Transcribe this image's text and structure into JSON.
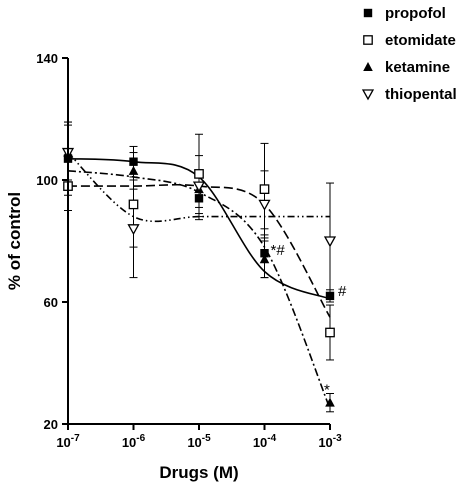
{
  "chart_data": {
    "type": "scatter",
    "title": "",
    "xlabel": "Drugs (M)",
    "ylabel": "% of control",
    "x_scale": "log",
    "xlim": [
      1e-07,
      0.001
    ],
    "ylim": [
      20,
      140
    ],
    "x_ticks": [
      {
        "value": 1e-07,
        "base": "10",
        "exp": "-7"
      },
      {
        "value": 1e-06,
        "base": "10",
        "exp": "-6"
      },
      {
        "value": 1e-05,
        "base": "10",
        "exp": "-5"
      },
      {
        "value": 0.0001,
        "base": "10",
        "exp": "-4"
      },
      {
        "value": 0.001,
        "base": "10",
        "exp": "-3"
      }
    ],
    "y_ticks": [
      "20",
      "60",
      "100",
      "140"
    ],
    "grid": false,
    "legend_position": "top-right",
    "series": [
      {
        "name": "propofol",
        "marker": "filled-square",
        "line_style": "solid",
        "color": "#000000",
        "x": [
          1e-07,
          1e-06,
          1e-05,
          0.0001,
          0.001
        ],
        "y": [
          107,
          106,
          94,
          76,
          62
        ],
        "err": [
          12,
          5,
          7,
          8,
          2
        ],
        "curve_y": [
          107,
          106,
          101,
          70,
          61
        ]
      },
      {
        "name": "etomidate",
        "marker": "open-square",
        "line_style": "long-dash",
        "color": "#000000",
        "x": [
          1e-07,
          1e-06,
          1e-05,
          0.0001,
          0.001
        ],
        "y": [
          98,
          92,
          102,
          97,
          50
        ],
        "err": [
          8,
          14,
          13,
          15,
          9
        ],
        "curve_y": [
          98,
          98,
          98,
          92,
          55
        ]
      },
      {
        "name": "ketamine",
        "marker": "filled-triangle",
        "line_style": "dash-dot",
        "color": "#000000",
        "x": [
          1e-07,
          1e-06,
          1e-05,
          0.0001,
          0.001
        ],
        "y": [
          109,
          103,
          97,
          74,
          27
        ],
        "err": [
          10,
          6,
          6,
          6,
          3
        ],
        "curve_y": [
          103,
          101,
          96,
          78,
          25
        ]
      },
      {
        "name": "thiopental",
        "marker": "open-inverted-triangle",
        "line_style": "dash-dot-dot",
        "color": "#000000",
        "x": [
          1e-07,
          1e-06,
          1e-05,
          0.0001,
          0.001
        ],
        "y": [
          109,
          84,
          98,
          92,
          80
        ],
        "err": [
          9,
          16,
          10,
          11,
          19
        ],
        "curve_y": [
          109,
          88,
          88,
          88,
          88
        ]
      }
    ],
    "annotations": [
      {
        "text": "*#",
        "x": 0.0001,
        "y": 76
      },
      {
        "text": "#",
        "x": 0.001,
        "y": 62
      },
      {
        "text": "*",
        "x": 0.001,
        "y": 27
      }
    ]
  }
}
